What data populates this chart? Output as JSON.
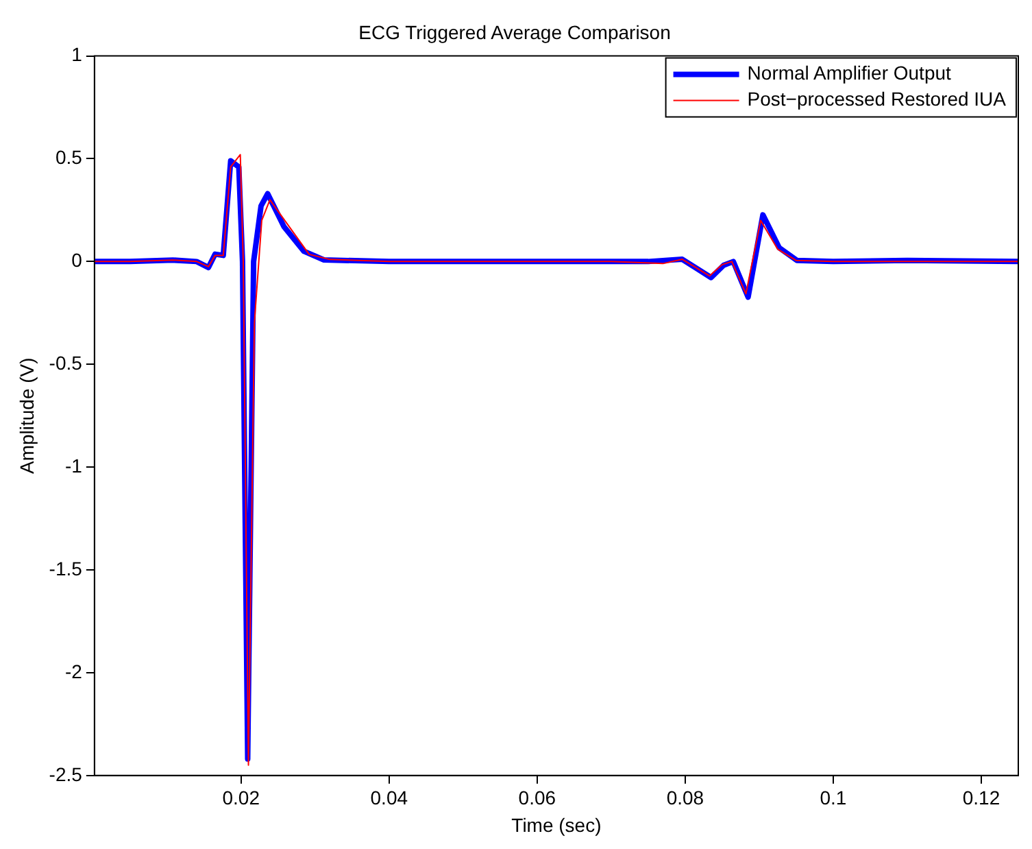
{
  "chart_data": {
    "type": "line",
    "title": "ECG Triggered Average Comparison",
    "xlabel": "Time (sec)",
    "ylabel": "Amplitude (V)",
    "xlim": [
      0.0002,
      0.125
    ],
    "xticks": [
      0.02,
      0.04,
      0.06,
      0.08,
      0.1,
      0.12
    ],
    "ylim": [
      -2.5,
      1
    ],
    "yticks": [
      -2.5,
      -2,
      -1.5,
      -1,
      -0.5,
      0,
      0.5,
      1
    ],
    "grid": false,
    "legend": "top right",
    "marker": "none",
    "line_style": "solid",
    "series": [
      {
        "name": "Normal Amplifier Output",
        "color": "#0000ff",
        "x": [
          0.0002,
          0.005,
          0.0108,
          0.014,
          0.0156,
          0.0165,
          0.0176,
          0.0186,
          0.0197,
          0.0202,
          0.0209,
          0.0217,
          0.0227,
          0.0236,
          0.0258,
          0.0285,
          0.0312,
          0.04,
          0.05,
          0.06,
          0.07,
          0.075,
          0.0796,
          0.0835,
          0.0852,
          0.0865,
          0.0885,
          0.0905,
          0.0927,
          0.0951,
          0.1,
          0.11,
          0.125
        ],
        "values": [
          0,
          0,
          0.007,
          0,
          -0.029,
          0.036,
          0.03,
          0.49,
          0.46,
          0,
          -2.42,
          0,
          0.27,
          0.33,
          0.17,
          0.05,
          0.008,
          0,
          0,
          0,
          0,
          0,
          0.011,
          -0.078,
          -0.018,
          0,
          -0.173,
          0.227,
          0.067,
          0.005,
          0,
          0.005,
          0
        ]
      },
      {
        "name": "Post−processed Restored IUA",
        "color": "#ff0000",
        "x": [
          0.0002,
          0.005,
          0.0108,
          0.014,
          0.0156,
          0.0165,
          0.0176,
          0.0186,
          0.0199,
          0.0203,
          0.021,
          0.0218,
          0.0228,
          0.0239,
          0.0265,
          0.0292,
          0.032,
          0.04,
          0.05,
          0.06,
          0.07,
          0.077,
          0.0796,
          0.0833,
          0.085,
          0.0863,
          0.0882,
          0.0902,
          0.0925,
          0.095,
          0.1,
          0.11,
          0.125
        ],
        "values": [
          0,
          0,
          0.007,
          0,
          -0.025,
          0.03,
          0.03,
          0.46,
          0.52,
          0,
          -2.45,
          -0.3,
          0.2,
          0.3,
          0.17,
          0.035,
          0.01,
          0,
          0,
          0,
          0,
          -0.01,
          0.011,
          -0.07,
          -0.015,
          0,
          -0.157,
          0.2,
          0.06,
          0.005,
          0,
          0,
          0
        ]
      }
    ]
  }
}
